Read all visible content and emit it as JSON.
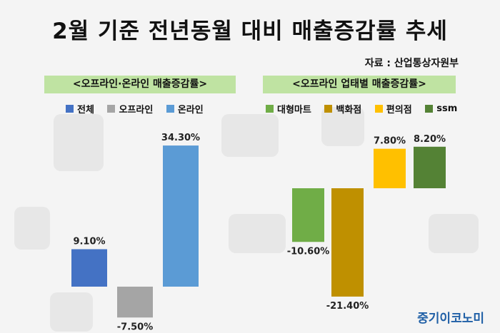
{
  "title": "2월 기준 전년동월 대비 매출증감률 추세",
  "source": "자료 : 산업통상자원부",
  "brand": "중기이코노미",
  "chart_data": [
    {
      "type": "bar",
      "title": "<오프라인·온라인 매출증감률>",
      "categories": [
        "전체",
        "오프라인",
        "온라인"
      ],
      "values": [
        9.1,
        -7.5,
        34.3
      ],
      "value_labels": [
        "9.10%",
        "-7.50%",
        "34.30%"
      ],
      "colors": [
        "#4472c4",
        "#a5a5a5",
        "#5b9bd5"
      ],
      "ylim": [
        -10,
        35
      ]
    },
    {
      "type": "bar",
      "title": "<오프라인 업태별 매출증감률>",
      "categories": [
        "대형마트",
        "백화점",
        "편의점",
        "ssm"
      ],
      "values": [
        -10.6,
        -21.4,
        7.8,
        8.2
      ],
      "value_labels": [
        "-10.60%",
        "-21.40%",
        "7.80%",
        "8.20%"
      ],
      "colors": [
        "#70ad47",
        "#bf9000",
        "#ffc000",
        "#548235"
      ],
      "ylim": [
        -25,
        10
      ]
    }
  ]
}
